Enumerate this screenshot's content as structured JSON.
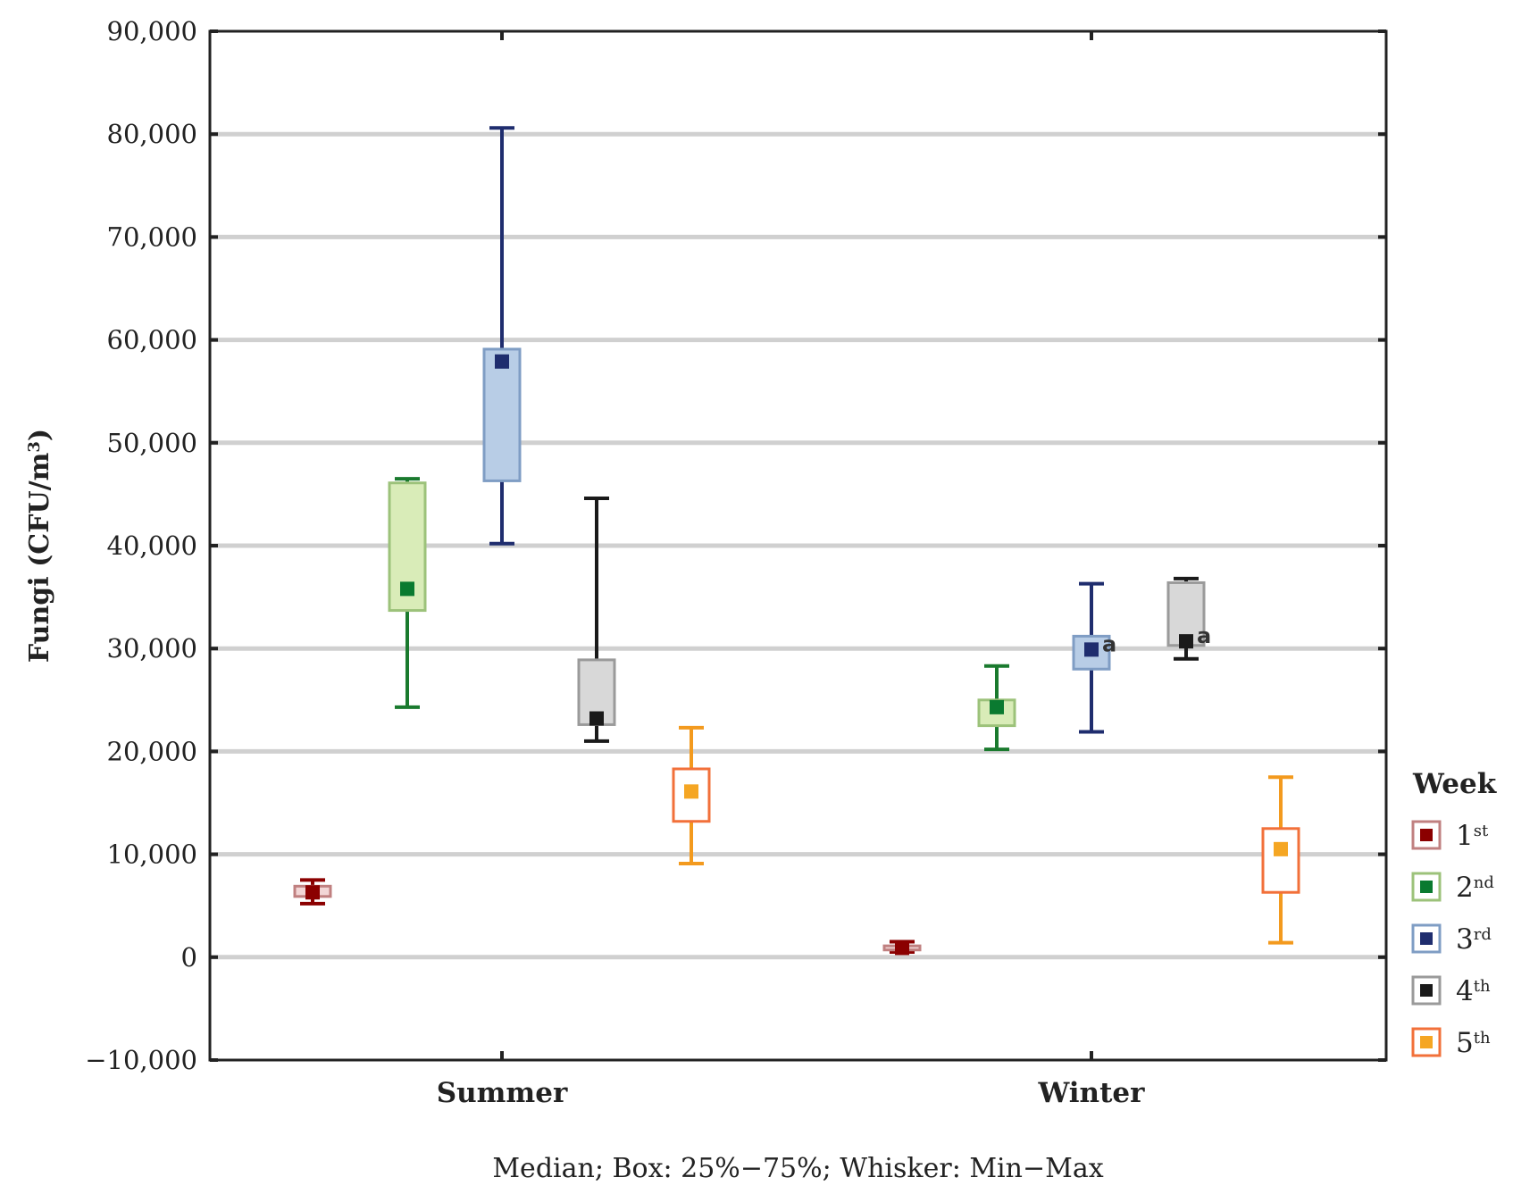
{
  "chart_data": {
    "type": "boxplot",
    "ylabel": "Fungi (CFU/m",
    "ylabel_superscript": "3",
    "ylabel_suffix": ")",
    "xlabel": "",
    "caption": "Median; Box: 25%−75%; Whisker: Min−Max",
    "ylim": [
      -10000,
      90000
    ],
    "yticks": [
      -10000,
      0,
      10000,
      20000,
      30000,
      40000,
      50000,
      60000,
      70000,
      80000,
      90000
    ],
    "ytick_labels": [
      "−10,000",
      "0",
      "10,000",
      "20,000",
      "30,000",
      "40,000",
      "50,000",
      "60,000",
      "70,000",
      "80,000",
      "90,000"
    ],
    "categories": [
      "Summer",
      "Winter"
    ],
    "grid": true,
    "legend": {
      "title": "Week",
      "position": "right",
      "entries": [
        {
          "base": "1",
          "sup": "st"
        },
        {
          "base": "2",
          "sup": "nd"
        },
        {
          "base": "3",
          "sup": "rd"
        },
        {
          "base": "4",
          "sup": "th"
        },
        {
          "base": "5",
          "sup": "th"
        }
      ]
    },
    "series": [
      {
        "name": "1st",
        "colors": {
          "line": "#8b0000",
          "box_fill": "#f2d6d6",
          "box_edge": "#c08080",
          "marker": "#8b0000"
        },
        "data": [
          {
            "category": "Summer",
            "min": 5200,
            "q1": 5900,
            "median": 6300,
            "q3": 6900,
            "max": 7500
          },
          {
            "category": "Winter",
            "min": 500,
            "q1": 700,
            "median": 900,
            "q3": 1100,
            "max": 1500
          }
        ]
      },
      {
        "name": "2nd",
        "colors": {
          "line": "#1a7a2e",
          "box_fill": "#d9ecb8",
          "box_edge": "#9cc27a",
          "marker": "#0a7a30"
        },
        "data": [
          {
            "category": "Summer",
            "min": 24300,
            "q1": 33700,
            "median": 35800,
            "q3": 46100,
            "max": 46500
          },
          {
            "category": "Winter",
            "min": 20200,
            "q1": 22500,
            "median": 24300,
            "q3": 25000,
            "max": 28300
          }
        ]
      },
      {
        "name": "3rd",
        "colors": {
          "line": "#1f2d6e",
          "box_fill": "#b8cde6",
          "box_edge": "#7f9dc4",
          "marker": "#1f2d6e"
        },
        "data": [
          {
            "category": "Summer",
            "min": 40200,
            "q1": 46300,
            "median": 57900,
            "q3": 59100,
            "max": 80600
          },
          {
            "category": "Winter",
            "min": 21900,
            "q1": 28000,
            "median": 29900,
            "q3": 31200,
            "max": 36300
          }
        ]
      },
      {
        "name": "4th",
        "colors": {
          "line": "#1a1a1a",
          "box_fill": "#d8d8d8",
          "box_edge": "#9a9a9a",
          "marker": "#1a1a1a"
        },
        "data": [
          {
            "category": "Summer",
            "min": 21000,
            "q1": 22600,
            "median": 23200,
            "q3": 28900,
            "max": 44600
          },
          {
            "category": "Winter",
            "min": 29000,
            "q1": 30300,
            "median": 30700,
            "q3": 36400,
            "max": 36800
          }
        ]
      },
      {
        "name": "5th",
        "colors": {
          "line": "#f39a1e",
          "box_fill": "#ffffff",
          "box_edge": "#f2703a",
          "marker": "#f5a623"
        },
        "data": [
          {
            "category": "Summer",
            "min": 9100,
            "q1": 13200,
            "median": 16100,
            "q3": 18300,
            "max": 22300
          },
          {
            "category": "Winter",
            "min": 1400,
            "q1": 6300,
            "median": 10500,
            "q3": 12500,
            "max": 17500
          }
        ]
      }
    ],
    "annotations": [
      {
        "text": "a",
        "series": "3rd",
        "category": "Winter"
      },
      {
        "text": "a",
        "series": "4th",
        "category": "Winter"
      }
    ]
  }
}
